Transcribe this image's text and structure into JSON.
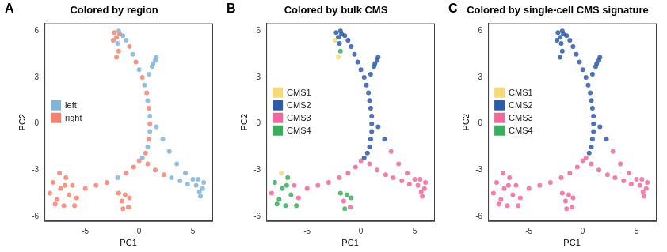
{
  "chart_data": [
    {
      "type": "scatter",
      "panel": "A",
      "title": "Colored by region",
      "x_label": "PC1",
      "y_label": "PC2",
      "xlim": [
        -8.8,
        6.8
      ],
      "ylim": [
        -6.3,
        6.5
      ],
      "xticks": [
        -5,
        0,
        5
      ],
      "yticks": [
        -6,
        -3,
        0,
        3,
        6
      ],
      "grid": false,
      "legend": "left",
      "series": [
        {
          "name": "left",
          "color": "#82b4d9",
          "values": [
            [
              -1.2,
              5.4
            ],
            [
              -0.6,
              4.5
            ],
            [
              0.0,
              3.5
            ],
            [
              0.5,
              2.5
            ],
            [
              0.8,
              1.5
            ],
            [
              0.9,
              3.2
            ],
            [
              1.2,
              3.7
            ],
            [
              1.5,
              4.1
            ],
            [
              1.6,
              4.3
            ],
            [
              1.3,
              3.9
            ],
            [
              -1.9,
              6.0
            ],
            [
              -2.0,
              5.2
            ],
            [
              -1.5,
              5.7
            ],
            [
              1.0,
              0.5
            ],
            [
              1.0,
              -0.5
            ],
            [
              0.8,
              -1.5
            ],
            [
              1.6,
              -0.2
            ],
            [
              2.2,
              -1.0
            ],
            [
              2.8,
              -1.8
            ],
            [
              3.5,
              -2.6
            ],
            [
              4.3,
              -3.2
            ],
            [
              5.0,
              -3.6
            ],
            [
              5.3,
              -4.0
            ],
            [
              5.6,
              -4.4
            ],
            [
              5.9,
              -4.2
            ],
            [
              6.0,
              -3.8
            ],
            [
              5.7,
              -4.7
            ],
            [
              5.5,
              -3.6
            ],
            [
              3.0,
              -3.5
            ],
            [
              3.8,
              -3.7
            ],
            [
              4.5,
              -3.9
            ],
            [
              -2.0,
              -3.5
            ],
            [
              0.3,
              -2.2
            ]
          ]
        },
        {
          "name": "right",
          "color": "#f4826f",
          "values": [
            [
              -2.3,
              5.9
            ],
            [
              -2.1,
              5.6
            ],
            [
              -1.9,
              4.7
            ],
            [
              -2.1,
              4.3
            ],
            [
              -1.8,
              5.8
            ],
            [
              -2.4,
              5.4
            ],
            [
              -0.9,
              5.0
            ],
            [
              -0.3,
              4.0
            ],
            [
              0.3,
              3.0
            ],
            [
              0.7,
              2.0
            ],
            [
              0.9,
              1.0
            ],
            [
              1.0,
              0.0
            ],
            [
              0.9,
              -1.0
            ],
            [
              0.6,
              -1.9
            ],
            [
              0.0,
              -2.4
            ],
            [
              -0.5,
              -2.8
            ],
            [
              -1.2,
              -3.2
            ],
            [
              -3.0,
              -3.8
            ],
            [
              -4.0,
              -4.0
            ],
            [
              -5.0,
              -4.2
            ],
            [
              -8.3,
              -4.5
            ],
            [
              -8.0,
              -3.8
            ],
            [
              -7.6,
              -4.9
            ],
            [
              -7.3,
              -4.2
            ],
            [
              -7.0,
              -5.3
            ],
            [
              -6.8,
              -3.5
            ],
            [
              -6.5,
              -4.6
            ],
            [
              -6.2,
              -4.0
            ],
            [
              -5.8,
              -4.8
            ],
            [
              -7.8,
              -5.2
            ],
            [
              -6.9,
              -4.0
            ],
            [
              -7.4,
              -3.2
            ],
            [
              -6.0,
              -5.3
            ],
            [
              -1.9,
              -4.5
            ],
            [
              -1.6,
              -5.0
            ],
            [
              -1.3,
              -4.6
            ],
            [
              -1.0,
              -5.4
            ],
            [
              -1.5,
              -5.5
            ],
            [
              -0.9,
              -4.8
            ],
            [
              0.8,
              -2.6
            ],
            [
              1.5,
              -3.0
            ],
            [
              2.3,
              -3.3
            ]
          ]
        }
      ]
    },
    {
      "type": "scatter",
      "panel": "B",
      "title": "Colored by bulk CMS",
      "x_label": "PC1",
      "y_label": "PC2",
      "xlim": [
        -8.8,
        6.8
      ],
      "ylim": [
        -6.3,
        6.5
      ],
      "xticks": [
        -5,
        0,
        5
      ],
      "yticks": [
        -6,
        -3,
        0,
        3,
        6
      ],
      "grid": false,
      "legend": "left",
      "series": [
        {
          "name": "CMS1",
          "color": "#f6d97a",
          "values": [
            [
              -2.4,
              5.4
            ],
            [
              -2.1,
              4.3
            ],
            [
              -7.4,
              -3.2
            ]
          ]
        },
        {
          "name": "CMS2",
          "color": "#2c5ba8",
          "values": [
            [
              -2.3,
              5.9
            ],
            [
              -2.1,
              5.6
            ],
            [
              -1.9,
              6.0
            ],
            [
              -2.0,
              5.2
            ],
            [
              -1.8,
              5.8
            ],
            [
              -1.5,
              5.7
            ],
            [
              -1.2,
              5.4
            ],
            [
              -0.9,
              5.0
            ],
            [
              -0.6,
              4.5
            ],
            [
              -0.3,
              4.0
            ],
            [
              0.0,
              3.5
            ],
            [
              0.3,
              3.0
            ],
            [
              0.5,
              2.5
            ],
            [
              0.7,
              2.0
            ],
            [
              0.8,
              1.5
            ],
            [
              0.9,
              3.2
            ],
            [
              1.2,
              3.7
            ],
            [
              1.5,
              4.1
            ],
            [
              1.6,
              4.3
            ],
            [
              1.3,
              3.9
            ],
            [
              0.9,
              1.0
            ],
            [
              1.0,
              0.5
            ],
            [
              1.0,
              0.0
            ],
            [
              1.0,
              -0.5
            ],
            [
              0.9,
              -1.0
            ],
            [
              0.8,
              -1.5
            ],
            [
              0.6,
              -1.9
            ],
            [
              1.6,
              -0.2
            ],
            [
              2.2,
              -1.0
            ],
            [
              0.3,
              -2.2
            ]
          ]
        },
        {
          "name": "CMS3",
          "color": "#f0689c",
          "values": [
            [
              2.8,
              -1.8
            ],
            [
              3.5,
              -2.6
            ],
            [
              4.3,
              -3.2
            ],
            [
              5.0,
              -3.6
            ],
            [
              0.0,
              -2.4
            ],
            [
              -0.5,
              -2.8
            ],
            [
              -1.2,
              -3.2
            ],
            [
              -2.0,
              -3.5
            ],
            [
              -3.0,
              -3.8
            ],
            [
              -4.0,
              -4.0
            ],
            [
              -5.0,
              -4.2
            ],
            [
              0.8,
              -2.6
            ],
            [
              1.5,
              -3.0
            ],
            [
              2.3,
              -3.3
            ],
            [
              3.0,
              -3.5
            ],
            [
              3.8,
              -3.7
            ],
            [
              4.5,
              -3.9
            ],
            [
              5.3,
              -4.0
            ],
            [
              5.6,
              -4.4
            ],
            [
              5.9,
              -4.2
            ],
            [
              6.0,
              -3.8
            ],
            [
              5.7,
              -4.7
            ],
            [
              5.5,
              -3.6
            ],
            [
              -5.8,
              -4.8
            ],
            [
              -6.2,
              -4.0
            ],
            [
              -8.3,
              -4.5
            ],
            [
              -1.6,
              -5.0
            ],
            [
              -1.0,
              -5.4
            ]
          ]
        },
        {
          "name": "CMS4",
          "color": "#3aad5c",
          "values": [
            [
              -1.9,
              4.7
            ],
            [
              -8.0,
              -3.8
            ],
            [
              -7.6,
              -4.9
            ],
            [
              -7.3,
              -4.2
            ],
            [
              -7.0,
              -5.3
            ],
            [
              -6.8,
              -3.5
            ],
            [
              -6.5,
              -4.6
            ],
            [
              -7.8,
              -5.2
            ],
            [
              -6.9,
              -4.0
            ],
            [
              -6.0,
              -5.3
            ],
            [
              -1.9,
              -4.5
            ],
            [
              -1.3,
              -4.6
            ],
            [
              -1.5,
              -5.5
            ],
            [
              -0.9,
              -4.8
            ]
          ]
        }
      ]
    },
    {
      "type": "scatter",
      "panel": "C",
      "title": "Colored by single-cell CMS signature",
      "x_label": "PC1",
      "y_label": "PC2",
      "xlim": [
        -8.8,
        6.8
      ],
      "ylim": [
        -6.3,
        6.5
      ],
      "xticks": [
        -5,
        0,
        5
      ],
      "yticks": [
        -6,
        -3,
        0,
        3,
        6
      ],
      "grid": false,
      "legend": "left",
      "series": [
        {
          "name": "CMS1",
          "color": "#f6d97a",
          "values": []
        },
        {
          "name": "CMS2",
          "color": "#2c5ba8",
          "values": [
            [
              -2.3,
              5.9
            ],
            [
              -2.1,
              5.6
            ],
            [
              -1.9,
              6.0
            ],
            [
              -2.0,
              5.2
            ],
            [
              -1.9,
              4.7
            ],
            [
              -2.1,
              4.3
            ],
            [
              -1.8,
              5.8
            ],
            [
              -1.5,
              5.7
            ],
            [
              -2.4,
              5.4
            ],
            [
              -1.2,
              5.4
            ],
            [
              -0.9,
              5.0
            ],
            [
              -0.6,
              4.5
            ],
            [
              -0.3,
              4.0
            ],
            [
              0.0,
              3.5
            ],
            [
              0.3,
              3.0
            ],
            [
              0.5,
              2.5
            ],
            [
              0.7,
              2.0
            ],
            [
              0.8,
              1.5
            ],
            [
              0.9,
              3.2
            ],
            [
              1.2,
              3.7
            ],
            [
              1.5,
              4.1
            ],
            [
              1.6,
              4.3
            ],
            [
              1.3,
              3.9
            ],
            [
              0.9,
              1.0
            ],
            [
              1.0,
              0.5
            ],
            [
              1.0,
              0.0
            ],
            [
              1.0,
              -0.5
            ],
            [
              0.9,
              -1.0
            ],
            [
              0.8,
              -1.5
            ],
            [
              0.6,
              -1.9
            ],
            [
              1.6,
              -0.2
            ],
            [
              2.2,
              -1.0
            ]
          ]
        },
        {
          "name": "CMS3",
          "color": "#f0689c",
          "values": [
            [
              2.8,
              -1.8
            ],
            [
              3.5,
              -2.6
            ],
            [
              4.3,
              -3.2
            ],
            [
              5.0,
              -3.6
            ],
            [
              0.3,
              -2.2
            ],
            [
              0.0,
              -2.4
            ],
            [
              -0.5,
              -2.8
            ],
            [
              -1.2,
              -3.2
            ],
            [
              -2.0,
              -3.5
            ],
            [
              -3.0,
              -3.8
            ],
            [
              -4.0,
              -4.0
            ],
            [
              -5.0,
              -4.2
            ],
            [
              -8.3,
              -4.5
            ],
            [
              -8.0,
              -3.8
            ],
            [
              -7.6,
              -4.9
            ],
            [
              -7.3,
              -4.2
            ],
            [
              -7.0,
              -5.3
            ],
            [
              -6.8,
              -3.5
            ],
            [
              -6.5,
              -4.6
            ],
            [
              -6.2,
              -4.0
            ],
            [
              -5.8,
              -4.8
            ],
            [
              -7.8,
              -5.2
            ],
            [
              -6.9,
              -4.0
            ],
            [
              -7.4,
              -3.2
            ],
            [
              -6.0,
              -5.3
            ],
            [
              -1.9,
              -4.5
            ],
            [
              -1.6,
              -5.0
            ],
            [
              -1.3,
              -4.6
            ],
            [
              -1.0,
              -5.4
            ],
            [
              -1.5,
              -5.5
            ],
            [
              -0.9,
              -4.8
            ],
            [
              0.8,
              -2.6
            ],
            [
              1.5,
              -3.0
            ],
            [
              2.3,
              -3.3
            ],
            [
              3.0,
              -3.5
            ],
            [
              3.8,
              -3.7
            ],
            [
              4.5,
              -3.9
            ],
            [
              5.3,
              -4.0
            ],
            [
              5.6,
              -4.4
            ],
            [
              5.9,
              -4.2
            ],
            [
              6.0,
              -3.8
            ],
            [
              5.7,
              -4.7
            ],
            [
              5.5,
              -3.6
            ]
          ]
        },
        {
          "name": "CMS4",
          "color": "#3aad5c",
          "values": []
        }
      ]
    }
  ]
}
